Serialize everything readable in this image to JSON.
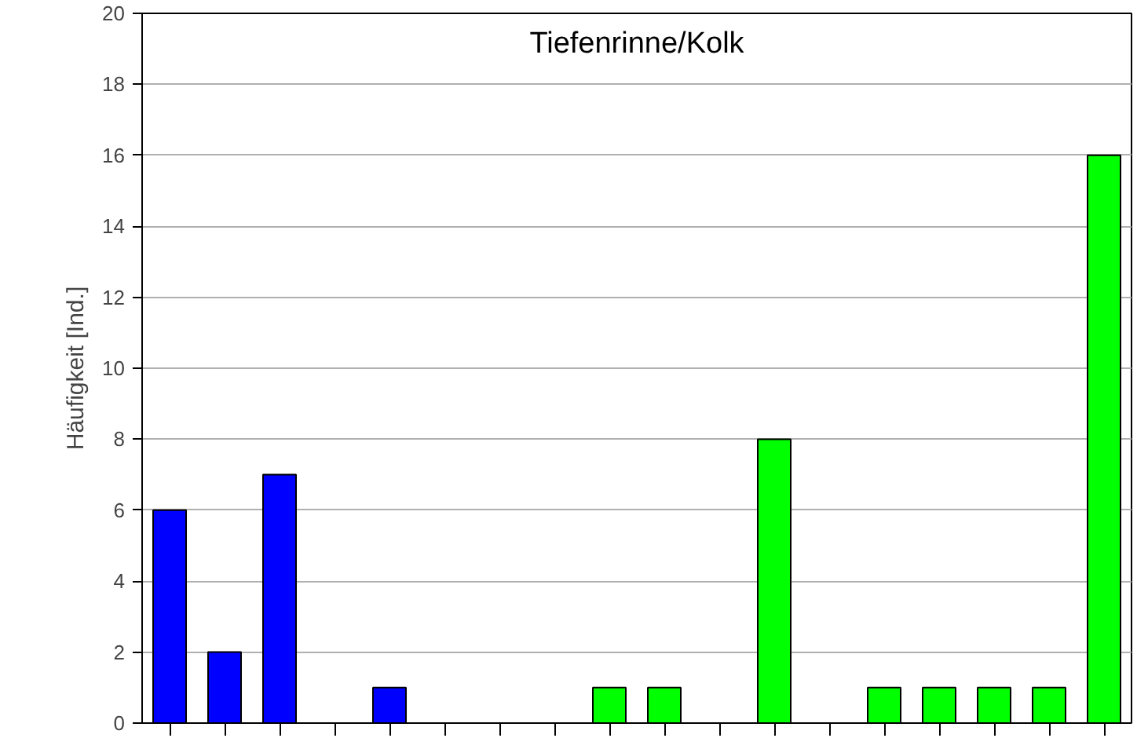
{
  "chart_data": {
    "type": "bar",
    "title": "Tiefenrinne/Kolk",
    "ylabel": "Häufigkeit [Ind.]",
    "categories": [
      null,
      null,
      null,
      null,
      null,
      null,
      null,
      null,
      null,
      null,
      null,
      null,
      null,
      null,
      null,
      null,
      null,
      null
    ],
    "values": [
      6,
      2,
      7,
      0,
      1,
      0,
      0,
      0,
      1,
      1,
      0,
      8,
      0,
      1,
      1,
      1,
      1,
      16
    ],
    "colors": [
      "#0000ff",
      "#0000ff",
      "#0000ff",
      "#0000ff",
      "#0000ff",
      "#0000ff",
      "#0000ff",
      "#0000ff",
      "#00ff00",
      "#00ff00",
      "#00ff00",
      "#00ff00",
      "#00ff00",
      "#00ff00",
      "#00ff00",
      "#00ff00",
      "#00ff00",
      "#00ff00"
    ],
    "ylim": [
      0,
      20
    ],
    "yticks": [
      0,
      2,
      4,
      6,
      8,
      10,
      12,
      14,
      16,
      18,
      20
    ],
    "grid": "y",
    "tick_labels": "y"
  }
}
